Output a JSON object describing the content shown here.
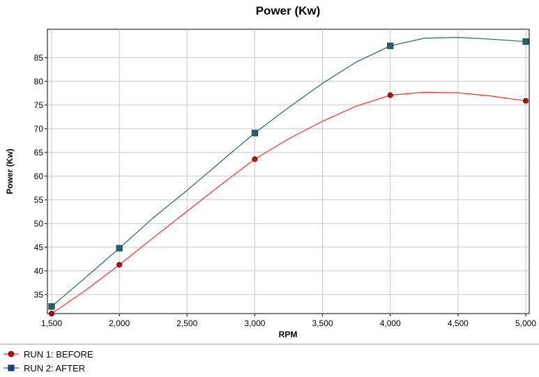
{
  "chart_data": {
    "type": "line",
    "title": "Power (Kw)",
    "xlabel": "RPM",
    "ylabel": "Power (Kw)",
    "xlim": [
      1500,
      5000
    ],
    "ylim": [
      31,
      91
    ],
    "x_ticks": [
      1500,
      2000,
      2500,
      3000,
      3500,
      4000,
      4500,
      5000
    ],
    "x_tick_labels": [
      "1,500",
      "2,000",
      "2,500",
      "3,000",
      "3,500",
      "4,000",
      "4,500",
      "5,000"
    ],
    "y_ticks": [
      35,
      40,
      45,
      50,
      55,
      60,
      65,
      70,
      75,
      80,
      85
    ],
    "y_tick_labels": [
      "35",
      "40",
      "45",
      "50",
      "55",
      "60",
      "65",
      "70",
      "75",
      "80",
      "85"
    ],
    "grid": true,
    "legend_position": "bottom-left",
    "series": [
      {
        "name": "RUN 1: BEFORE",
        "color": "#ff2a2a",
        "marker": "circle",
        "marker_color": "#cc0000",
        "markers": [
          {
            "x": 1500,
            "y": 31.0
          },
          {
            "x": 2000,
            "y": 41.3
          },
          {
            "x": 3000,
            "y": 63.6
          },
          {
            "x": 4000,
            "y": 77.1
          },
          {
            "x": 5000,
            "y": 75.9
          }
        ],
        "curve": [
          {
            "x": 1500,
            "y": 31.0
          },
          {
            "x": 1750,
            "y": 35.9
          },
          {
            "x": 2000,
            "y": 41.3
          },
          {
            "x": 2250,
            "y": 47.0
          },
          {
            "x": 2500,
            "y": 52.6
          },
          {
            "x": 2750,
            "y": 58.2
          },
          {
            "x": 3000,
            "y": 63.6
          },
          {
            "x": 3250,
            "y": 67.9
          },
          {
            "x": 3500,
            "y": 71.6
          },
          {
            "x": 3750,
            "y": 74.8
          },
          {
            "x": 4000,
            "y": 77.1
          },
          {
            "x": 4250,
            "y": 77.7
          },
          {
            "x": 4500,
            "y": 77.6
          },
          {
            "x": 4750,
            "y": 76.9
          },
          {
            "x": 5000,
            "y": 75.9
          }
        ]
      },
      {
        "name": "RUN 2: AFTER",
        "color": "#1f6b4f",
        "marker": "square",
        "marker_color": "#1a3f8f",
        "markers": [
          {
            "x": 1500,
            "y": 32.5
          },
          {
            "x": 2000,
            "y": 44.8
          },
          {
            "x": 3000,
            "y": 69.1
          },
          {
            "x": 4000,
            "y": 87.5
          },
          {
            "x": 5000,
            "y": 88.4
          }
        ],
        "curve": [
          {
            "x": 1500,
            "y": 32.5
          },
          {
            "x": 1750,
            "y": 38.6
          },
          {
            "x": 2000,
            "y": 44.8
          },
          {
            "x": 2250,
            "y": 51.2
          },
          {
            "x": 2500,
            "y": 57.0
          },
          {
            "x": 2750,
            "y": 63.1
          },
          {
            "x": 3000,
            "y": 69.1
          },
          {
            "x": 3250,
            "y": 74.5
          },
          {
            "x": 3500,
            "y": 79.6
          },
          {
            "x": 3750,
            "y": 84.1
          },
          {
            "x": 4000,
            "y": 87.5
          },
          {
            "x": 4250,
            "y": 89.1
          },
          {
            "x": 4500,
            "y": 89.3
          },
          {
            "x": 4750,
            "y": 88.9
          },
          {
            "x": 5000,
            "y": 88.4
          }
        ]
      }
    ]
  }
}
